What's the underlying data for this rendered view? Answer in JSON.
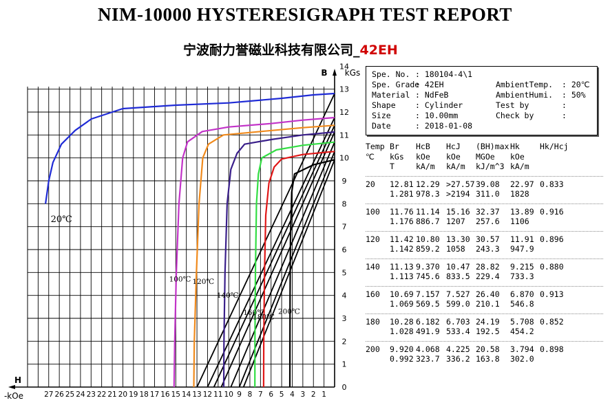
{
  "report": {
    "title": "NIM-10000 HYSTERESIGRAPH  TEST REPORT",
    "subtitle_company": "宁波耐力誉磁业科技有限公司_",
    "subtitle_grade": "42EH"
  },
  "info": {
    "rows": [
      {
        "k1": "Spe. No.",
        "v1": ": 180104-4\\1",
        "k2": "",
        "v2": ""
      },
      {
        "k1": "Spe. Grade",
        "v1": ": 42EH",
        "k2": "AmbientTemp.",
        "v2": ": 20℃"
      },
      {
        "k1": "Material",
        "v1": ": NdFeB",
        "k2": "AmbientHumi.",
        "v2": ": 50%"
      },
      {
        "k1": "Shape",
        "v1": ": Cylinder",
        "k2": "Test by",
        "v2": ":"
      },
      {
        "k1": "Size",
        "v1": ": 10.00mm",
        "k2": "Check by",
        "v2": ":"
      },
      {
        "k1": "Date",
        "v1": ": 2018-01-08",
        "k2": "",
        "v2": ""
      }
    ]
  },
  "table": {
    "header_lines": [
      [
        "Temp",
        "Br",
        "HcB",
        "HcJ",
        "(BH)max",
        "Hk",
        "Hk/Hcj"
      ],
      [
        "℃",
        "kGs",
        "kOe",
        "kOe",
        "MGOe",
        "kOe",
        ""
      ],
      [
        "",
        "T",
        "kA/m",
        "kA/m",
        "kJ/m^3",
        "kA/m",
        ""
      ]
    ],
    "rows": [
      {
        "line1": [
          "20",
          "12.81",
          "12.29",
          ">27.57",
          "39.08",
          "22.97",
          "0.833"
        ],
        "line2": [
          "",
          "1.281",
          "978.3",
          ">2194",
          "311.0",
          "1828",
          ""
        ]
      },
      {
        "line1": [
          "100",
          "11.76",
          "11.14",
          "15.16",
          "32.37",
          "13.89",
          "0.916"
        ],
        "line2": [
          "",
          "1.176",
          "886.7",
          "1207",
          "257.6",
          "1106",
          ""
        ]
      },
      {
        "line1": [
          "120",
          "11.42",
          "10.80",
          "13.30",
          "30.57",
          "11.91",
          "0.896"
        ],
        "line2": [
          "",
          "1.142",
          "859.2",
          "1058",
          "243.3",
          "947.9",
          ""
        ]
      },
      {
        "line1": [
          "140",
          "11.13",
          "9.370",
          "10.47",
          "28.82",
          "9.215",
          "0.880"
        ],
        "line2": [
          "",
          "1.113",
          "745.6",
          "833.5",
          "229.4",
          "733.3",
          ""
        ]
      },
      {
        "line1": [
          "160",
          "10.69",
          "7.157",
          "7.527",
          "26.40",
          "6.870",
          "0.913"
        ],
        "line2": [
          "",
          "1.069",
          "569.5",
          "599.0",
          "210.1",
          "546.8",
          ""
        ]
      },
      {
        "line1": [
          "180",
          "10.28",
          "6.182",
          "6.703",
          "24.19",
          "5.708",
          "0.852"
        ],
        "line2": [
          "",
          "1.028",
          "491.9",
          "533.4",
          "192.5",
          "454.2",
          ""
        ]
      },
      {
        "line1": [
          "200",
          "9.920",
          "4.068",
          "4.225",
          "20.58",
          "3.794",
          "0.898"
        ],
        "line2": [
          "",
          "0.992",
          "323.7",
          "336.2",
          "163.8",
          "302.0",
          ""
        ]
      }
    ]
  },
  "chart_data": {
    "type": "line",
    "xlabel": "-kOe",
    "xaxis_symbol": "H",
    "ylabel": "kGs",
    "yaxis_symbol": "B",
    "xlim": [
      0,
      29
    ],
    "ylim": [
      0,
      13
    ],
    "x_ticks": [
      "1",
      "2",
      "3",
      "4",
      "5",
      "6",
      "7",
      "8",
      "9",
      "10",
      "11",
      "12",
      "13",
      "14",
      "15",
      "16",
      "17",
      "18",
      "19",
      "20",
      "21",
      "22",
      "23",
      "24",
      "25",
      "26",
      "27"
    ],
    "y_ticks": [
      "0",
      "1",
      "2",
      "3",
      "4",
      "5",
      "6",
      "7",
      "8",
      "9",
      "10",
      "11",
      "12",
      "13",
      "14"
    ],
    "grid": true,
    "colors": {
      "20": "#1f2bd6",
      "100": "#c233c8",
      "120": "#f08a1c",
      "140": "#3a1f8a",
      "160": "#33dd44",
      "180": "#e01818",
      "200": "#000000",
      "loadline": "#000000"
    },
    "series": [
      {
        "name": "20℃",
        "label_x": 25.8,
        "label_y": 7.2,
        "points": [
          [
            0,
            12.81
          ],
          [
            2,
            12.75
          ],
          [
            5,
            12.6
          ],
          [
            10,
            12.4
          ],
          [
            15,
            12.3
          ],
          [
            20,
            12.15
          ],
          [
            22.97,
            11.7
          ],
          [
            24.5,
            11.2
          ],
          [
            25.8,
            10.6
          ],
          [
            26.6,
            9.8
          ],
          [
            27.0,
            9.0
          ],
          [
            27.3,
            8.0
          ]
        ]
      },
      {
        "name": "100℃",
        "label_x": 14.6,
        "label_y": 4.6,
        "points": [
          [
            0,
            11.76
          ],
          [
            3,
            11.65
          ],
          [
            6,
            11.5
          ],
          [
            10,
            11.35
          ],
          [
            12.5,
            11.15
          ],
          [
            13.89,
            10.7
          ],
          [
            14.35,
            10.0
          ],
          [
            14.7,
            8.0
          ],
          [
            14.95,
            5.0
          ],
          [
            15.1,
            2.0
          ],
          [
            15.16,
            0
          ]
        ]
      },
      {
        "name": "120℃",
        "label_x": 12.4,
        "label_y": 4.5,
        "points": [
          [
            0,
            11.42
          ],
          [
            3,
            11.32
          ],
          [
            7,
            11.15
          ],
          [
            10.5,
            11.0
          ],
          [
            11.91,
            10.6
          ],
          [
            12.45,
            10.0
          ],
          [
            12.8,
            8.0
          ],
          [
            13.05,
            5.0
          ],
          [
            13.25,
            2.0
          ],
          [
            13.3,
            0
          ]
        ]
      },
      {
        "name": "140℃",
        "label_x": 10.1,
        "label_y": 3.9,
        "points": [
          [
            0,
            11.13
          ],
          [
            3,
            11.0
          ],
          [
            6,
            10.8
          ],
          [
            8.5,
            10.6
          ],
          [
            9.215,
            10.2
          ],
          [
            9.8,
            9.5
          ],
          [
            10.15,
            8.0
          ],
          [
            10.35,
            5.0
          ],
          [
            10.45,
            2.0
          ],
          [
            10.47,
            0
          ]
        ]
      },
      {
        "name": "160℃",
        "label_x": 7.6,
        "label_y": 3.15,
        "points": [
          [
            0,
            10.69
          ],
          [
            3,
            10.55
          ],
          [
            5.5,
            10.35
          ],
          [
            6.87,
            10.0
          ],
          [
            7.2,
            9.3
          ],
          [
            7.38,
            8.0
          ],
          [
            7.48,
            5.0
          ],
          [
            7.52,
            2.0
          ],
          [
            7.527,
            0
          ]
        ]
      },
      {
        "name": "180℃",
        "label_x": 6.7,
        "label_y": 2.95,
        "points": [
          [
            0,
            10.28
          ],
          [
            3,
            10.15
          ],
          [
            5.0,
            9.95
          ],
          [
            5.708,
            9.6
          ],
          [
            6.2,
            8.9
          ],
          [
            6.5,
            7.5
          ],
          [
            6.62,
            5.0
          ],
          [
            6.69,
            2.0
          ],
          [
            6.703,
            0
          ]
        ]
      },
      {
        "name": "200℃",
        "label_x": 4.3,
        "label_y": 3.2,
        "points": [
          [
            0,
            9.92
          ],
          [
            2,
            9.7
          ],
          [
            3.794,
            9.3
          ],
          [
            4.05,
            8.5
          ],
          [
            4.17,
            6.5
          ],
          [
            4.21,
            4.0
          ],
          [
            4.225,
            0
          ]
        ]
      }
    ],
    "loadlines": [
      {
        "points": [
          [
            0,
            12.81
          ],
          [
            13.0,
            0
          ]
        ]
      },
      {
        "points": [
          [
            0,
            11.76
          ],
          [
            12.0,
            0
          ]
        ]
      },
      {
        "points": [
          [
            0,
            11.42
          ],
          [
            11.4,
            0
          ]
        ]
      },
      {
        "points": [
          [
            0,
            11.13
          ],
          [
            10.7,
            0
          ]
        ]
      },
      {
        "points": [
          [
            0,
            10.69
          ],
          [
            9.8,
            0
          ]
        ]
      },
      {
        "points": [
          [
            0,
            10.28
          ],
          [
            9.0,
            0
          ]
        ]
      },
      {
        "points": [
          [
            0,
            9.92
          ],
          [
            8.6,
            0
          ]
        ]
      }
    ]
  }
}
